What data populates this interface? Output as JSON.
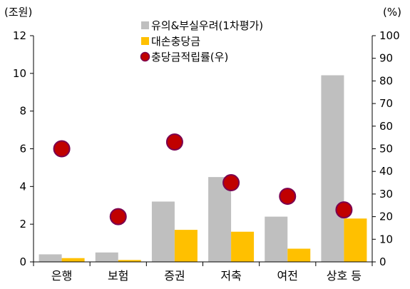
{
  "chart_data": {
    "type": "bar",
    "left_unit": "(조원)",
    "right_unit": "(%)",
    "categories": [
      "은행",
      "보험",
      "증권",
      "저축",
      "여전",
      "상호 등"
    ],
    "ylim": [
      0,
      12
    ],
    "yticks": [
      0,
      2,
      4,
      6,
      8,
      10,
      12
    ],
    "y2lim": [
      0,
      100
    ],
    "y2ticks": [
      0,
      10,
      20,
      30,
      40,
      50,
      60,
      70,
      80,
      90,
      100
    ],
    "series": [
      {
        "name": "유의&부실우려(1차평가)",
        "type": "bar",
        "axis": "left",
        "color": "#BFBFBF",
        "values": [
          0.4,
          0.5,
          3.2,
          4.5,
          2.4,
          9.9
        ]
      },
      {
        "name": "대손충당금",
        "type": "bar",
        "axis": "left",
        "color": "#FFC000",
        "values": [
          0.2,
          0.1,
          1.7,
          1.6,
          0.7,
          2.3
        ]
      },
      {
        "name": "충당금적립률(우)",
        "type": "scatter",
        "axis": "right",
        "color": "#C00000",
        "edge": "#7A0050",
        "values": [
          50,
          20,
          53,
          35,
          29,
          23
        ]
      }
    ],
    "legend": "top-center",
    "grid": false
  }
}
